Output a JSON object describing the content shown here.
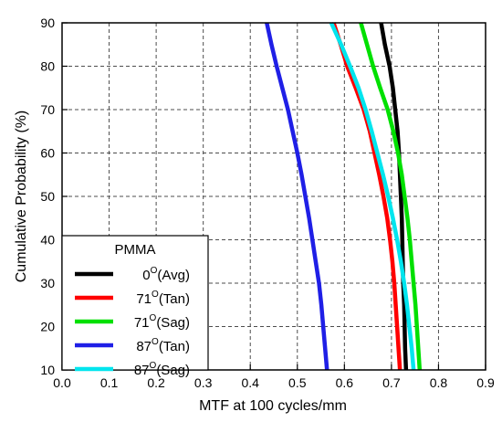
{
  "chart_data": {
    "type": "line",
    "xlabel": "MTF at 100 cycles/mm",
    "ylabel": "Cumulative Probability (%)",
    "xlim": [
      0.0,
      0.9
    ],
    "ylim": [
      10,
      90
    ],
    "x_ticks": [
      "0.0",
      "0.1",
      "0.2",
      "0.3",
      "0.4",
      "0.5",
      "0.6",
      "0.7",
      "0.8",
      "0.9"
    ],
    "y_ticks": [
      "10",
      "20",
      "30",
      "40",
      "50",
      "60",
      "70",
      "80",
      "90"
    ],
    "grid": "dashed",
    "legend": {
      "title": "PMMA",
      "placement": "bottom-left"
    },
    "series": [
      {
        "name_base": "0",
        "name_sup": "O",
        "name_tail": "(Avg)",
        "color": "#000000",
        "points": [
          [
            0.678,
            90
          ],
          [
            0.686,
            85
          ],
          [
            0.696,
            80
          ],
          [
            0.703,
            75
          ],
          [
            0.708,
            70
          ],
          [
            0.713,
            65
          ],
          [
            0.716,
            60
          ],
          [
            0.718,
            55
          ],
          [
            0.72,
            50
          ],
          [
            0.722,
            45
          ],
          [
            0.723,
            40
          ],
          [
            0.724,
            35
          ],
          [
            0.725,
            30
          ],
          [
            0.727,
            25
          ],
          [
            0.728,
            20
          ],
          [
            0.729,
            15
          ],
          [
            0.731,
            10
          ]
        ]
      },
      {
        "name_base": "71",
        "name_sup": "O",
        "name_tail": "(Tan)",
        "color": "#ff0000",
        "points": [
          [
            0.577,
            90
          ],
          [
            0.592,
            85
          ],
          [
            0.606,
            80
          ],
          [
            0.624,
            75
          ],
          [
            0.641,
            70
          ],
          [
            0.654,
            65
          ],
          [
            0.664,
            60
          ],
          [
            0.674,
            55
          ],
          [
            0.683,
            50
          ],
          [
            0.691,
            45
          ],
          [
            0.697,
            40
          ],
          [
            0.702,
            35
          ],
          [
            0.706,
            30
          ],
          [
            0.709,
            25
          ],
          [
            0.712,
            20
          ],
          [
            0.715,
            15
          ],
          [
            0.718,
            10
          ]
        ]
      },
      {
        "name_base": "71",
        "name_sup": "O",
        "name_tail": "(Sag)",
        "color": "#00e000",
        "points": [
          [
            0.635,
            90
          ],
          [
            0.648,
            85
          ],
          [
            0.661,
            80
          ],
          [
            0.676,
            75
          ],
          [
            0.692,
            70
          ],
          [
            0.704,
            65
          ],
          [
            0.714,
            60
          ],
          [
            0.722,
            55
          ],
          [
            0.728,
            50
          ],
          [
            0.734,
            45
          ],
          [
            0.739,
            40
          ],
          [
            0.743,
            35
          ],
          [
            0.747,
            30
          ],
          [
            0.751,
            25
          ],
          [
            0.754,
            20
          ],
          [
            0.757,
            15
          ],
          [
            0.76,
            10
          ]
        ]
      },
      {
        "name_base": "87",
        "name_sup": "O",
        "name_tail": "(Tan)",
        "color": "#1f1fe6",
        "points": [
          [
            0.435,
            90
          ],
          [
            0.445,
            85
          ],
          [
            0.456,
            80
          ],
          [
            0.468,
            75
          ],
          [
            0.48,
            70
          ],
          [
            0.49,
            65
          ],
          [
            0.5,
            60
          ],
          [
            0.509,
            55
          ],
          [
            0.517,
            50
          ],
          [
            0.525,
            45
          ],
          [
            0.532,
            40
          ],
          [
            0.539,
            35
          ],
          [
            0.546,
            30
          ],
          [
            0.551,
            25
          ],
          [
            0.555,
            20
          ],
          [
            0.559,
            15
          ],
          [
            0.563,
            10
          ]
        ]
      },
      {
        "name_base": "87",
        "name_sup": "O",
        "name_tail": "(Sag)",
        "color": "#00e5ee",
        "points": [
          [
            0.572,
            90
          ],
          [
            0.593,
            85
          ],
          [
            0.612,
            80
          ],
          [
            0.63,
            75
          ],
          [
            0.645,
            70
          ],
          [
            0.658,
            65
          ],
          [
            0.67,
            60
          ],
          [
            0.682,
            55
          ],
          [
            0.693,
            50
          ],
          [
            0.703,
            45
          ],
          [
            0.712,
            40
          ],
          [
            0.72,
            35
          ],
          [
            0.727,
            30
          ],
          [
            0.733,
            25
          ],
          [
            0.738,
            20
          ],
          [
            0.743,
            15
          ],
          [
            0.747,
            10
          ]
        ]
      }
    ]
  }
}
